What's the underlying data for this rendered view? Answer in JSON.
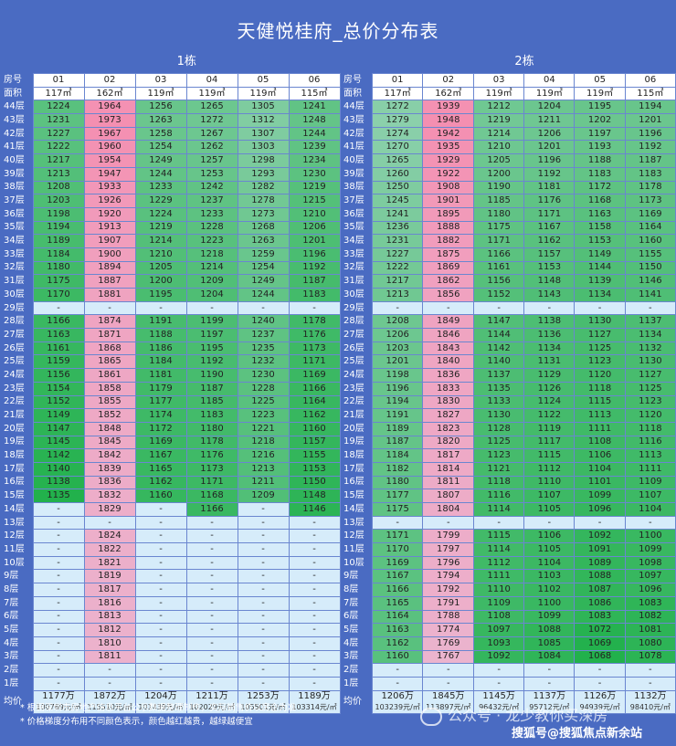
{
  "title": "天健悦桂府_总价分布表",
  "labels": {
    "room": "房号",
    "area": "面积",
    "avg": "均价"
  },
  "buildings": [
    {
      "name": "1栋",
      "units": [
        "01",
        "02",
        "03",
        "04",
        "05",
        "06"
      ],
      "areas": [
        "117㎡",
        "162㎡",
        "119㎡",
        "119㎡",
        "119㎡",
        "115㎡"
      ],
      "rows": [
        {
          "floor": "44层",
          "v": [
            "1224",
            "1964",
            "1256",
            "1265",
            "1305",
            "1241"
          ]
        },
        {
          "floor": "43层",
          "v": [
            "1231",
            "1973",
            "1263",
            "1272",
            "1312",
            "1248"
          ]
        },
        {
          "floor": "42层",
          "v": [
            "1227",
            "1967",
            "1258",
            "1267",
            "1307",
            "1244"
          ]
        },
        {
          "floor": "41层",
          "v": [
            "1222",
            "1960",
            "1254",
            "1262",
            "1303",
            "1239"
          ]
        },
        {
          "floor": "40层",
          "v": [
            "1217",
            "1954",
            "1249",
            "1257",
            "1298",
            "1234"
          ]
        },
        {
          "floor": "39层",
          "v": [
            "1213",
            "1947",
            "1244",
            "1253",
            "1293",
            "1230"
          ]
        },
        {
          "floor": "38层",
          "v": [
            "1208",
            "1933",
            "1233",
            "1242",
            "1282",
            "1219"
          ]
        },
        {
          "floor": "37层",
          "v": [
            "1203",
            "1926",
            "1229",
            "1237",
            "1278",
            "1215"
          ]
        },
        {
          "floor": "36层",
          "v": [
            "1198",
            "1920",
            "1224",
            "1233",
            "1273",
            "1210"
          ]
        },
        {
          "floor": "35层",
          "v": [
            "1194",
            "1913",
            "1219",
            "1228",
            "1268",
            "1206"
          ]
        },
        {
          "floor": "34层",
          "v": [
            "1189",
            "1907",
            "1214",
            "1223",
            "1263",
            "1201"
          ]
        },
        {
          "floor": "33层",
          "v": [
            "1184",
            "1900",
            "1210",
            "1218",
            "1259",
            "1196"
          ]
        },
        {
          "floor": "32层",
          "v": [
            "1180",
            "1894",
            "1205",
            "1214",
            "1254",
            "1192"
          ]
        },
        {
          "floor": "31层",
          "v": [
            "1175",
            "1887",
            "1200",
            "1209",
            "1249",
            "1187"
          ]
        },
        {
          "floor": "30层",
          "v": [
            "1170",
            "1881",
            "1195",
            "1204",
            "1244",
            "1183"
          ]
        },
        {
          "floor": "29层",
          "v": [
            "-",
            "-",
            "-",
            "-",
            "-",
            "-"
          ]
        },
        {
          "floor": "28层",
          "v": [
            "1166",
            "1874",
            "1191",
            "1199",
            "1240",
            "1178"
          ]
        },
        {
          "floor": "27层",
          "v": [
            "1163",
            "1871",
            "1188",
            "1197",
            "1237",
            "1176"
          ]
        },
        {
          "floor": "26层",
          "v": [
            "1161",
            "1868",
            "1186",
            "1195",
            "1235",
            "1173"
          ]
        },
        {
          "floor": "25层",
          "v": [
            "1159",
            "1865",
            "1184",
            "1192",
            "1232",
            "1171"
          ]
        },
        {
          "floor": "24层",
          "v": [
            "1156",
            "1861",
            "1181",
            "1190",
            "1230",
            "1169"
          ]
        },
        {
          "floor": "23层",
          "v": [
            "1154",
            "1858",
            "1179",
            "1187",
            "1228",
            "1166"
          ]
        },
        {
          "floor": "22层",
          "v": [
            "1152",
            "1855",
            "1177",
            "1185",
            "1225",
            "1164"
          ]
        },
        {
          "floor": "21层",
          "v": [
            "1149",
            "1852",
            "1174",
            "1183",
            "1223",
            "1162"
          ]
        },
        {
          "floor": "20层",
          "v": [
            "1147",
            "1848",
            "1172",
            "1180",
            "1221",
            "1160"
          ]
        },
        {
          "floor": "19层",
          "v": [
            "1145",
            "1845",
            "1169",
            "1178",
            "1218",
            "1157"
          ]
        },
        {
          "floor": "18层",
          "v": [
            "1142",
            "1842",
            "1167",
            "1176",
            "1216",
            "1155"
          ]
        },
        {
          "floor": "17层",
          "v": [
            "1140",
            "1839",
            "1165",
            "1173",
            "1213",
            "1153"
          ]
        },
        {
          "floor": "16层",
          "v": [
            "1138",
            "1836",
            "1162",
            "1171",
            "1211",
            "1150"
          ]
        },
        {
          "floor": "15层",
          "v": [
            "1135",
            "1832",
            "1160",
            "1168",
            "1209",
            "1148"
          ]
        },
        {
          "floor": "14层",
          "v": [
            "-",
            "1829",
            "-",
            "1166",
            "-",
            "1146"
          ]
        },
        {
          "floor": "13层",
          "v": [
            "-",
            "-",
            "-",
            "-",
            "-",
            "-"
          ]
        },
        {
          "floor": "12层",
          "v": [
            "-",
            "1824",
            "-",
            "-",
            "-",
            "-"
          ]
        },
        {
          "floor": "11层",
          "v": [
            "-",
            "1822",
            "-",
            "-",
            "-",
            "-"
          ]
        },
        {
          "floor": "10层",
          "v": [
            "-",
            "1821",
            "-",
            "-",
            "-",
            "-"
          ]
        },
        {
          "floor": "9层",
          "v": [
            "-",
            "1819",
            "-",
            "-",
            "-",
            "-"
          ]
        },
        {
          "floor": "8层",
          "v": [
            "-",
            "1817",
            "-",
            "-",
            "-",
            "-"
          ]
        },
        {
          "floor": "7层",
          "v": [
            "-",
            "1816",
            "-",
            "-",
            "-",
            "-"
          ]
        },
        {
          "floor": "6层",
          "v": [
            "-",
            "1813",
            "-",
            "-",
            "-",
            "-"
          ]
        },
        {
          "floor": "5层",
          "v": [
            "-",
            "1812",
            "-",
            "-",
            "-",
            "-"
          ]
        },
        {
          "floor": "4层",
          "v": [
            "-",
            "1810",
            "-",
            "-",
            "-",
            "-"
          ]
        },
        {
          "floor": "3层",
          "v": [
            "-",
            "1811",
            "-",
            "-",
            "-",
            "-"
          ]
        },
        {
          "floor": "2层",
          "v": [
            "-",
            "-",
            "-",
            "-",
            "-",
            "-"
          ]
        },
        {
          "floor": "1层",
          "v": [
            "-",
            "-",
            "-",
            "-",
            "-",
            "-"
          ]
        }
      ],
      "avg": [
        [
          "1177万",
          "100769元/㎡"
        ],
        [
          "1872万",
          "115510元/㎡"
        ],
        [
          "1204万",
          "101439元/㎡"
        ],
        [
          "1211万",
          "102029元/㎡"
        ],
        [
          "1253万",
          "105501元/㎡"
        ],
        [
          "1189万",
          "103314元/㎡"
        ]
      ]
    },
    {
      "name": "2栋",
      "units": [
        "01",
        "02",
        "03",
        "04",
        "05",
        "06"
      ],
      "areas": [
        "117㎡",
        "162㎡",
        "119㎡",
        "119㎡",
        "119㎡",
        "115㎡"
      ],
      "rows": [
        {
          "floor": "44层",
          "v": [
            "1272",
            "1939",
            "1212",
            "1204",
            "1195",
            "1194"
          ]
        },
        {
          "floor": "43层",
          "v": [
            "1279",
            "1948",
            "1219",
            "1211",
            "1202",
            "1201"
          ]
        },
        {
          "floor": "42层",
          "v": [
            "1274",
            "1942",
            "1214",
            "1206",
            "1197",
            "1196"
          ]
        },
        {
          "floor": "41层",
          "v": [
            "1270",
            "1935",
            "1210",
            "1201",
            "1193",
            "1192"
          ]
        },
        {
          "floor": "40层",
          "v": [
            "1265",
            "1929",
            "1205",
            "1196",
            "1188",
            "1187"
          ]
        },
        {
          "floor": "39层",
          "v": [
            "1260",
            "1922",
            "1200",
            "1192",
            "1183",
            "1183"
          ]
        },
        {
          "floor": "38层",
          "v": [
            "1250",
            "1908",
            "1190",
            "1181",
            "1172",
            "1178"
          ]
        },
        {
          "floor": "37层",
          "v": [
            "1245",
            "1901",
            "1185",
            "1176",
            "1168",
            "1173"
          ]
        },
        {
          "floor": "36层",
          "v": [
            "1241",
            "1895",
            "1180",
            "1171",
            "1163",
            "1169"
          ]
        },
        {
          "floor": "35层",
          "v": [
            "1236",
            "1888",
            "1175",
            "1167",
            "1158",
            "1164"
          ]
        },
        {
          "floor": "34层",
          "v": [
            "1231",
            "1882",
            "1171",
            "1162",
            "1153",
            "1160"
          ]
        },
        {
          "floor": "33层",
          "v": [
            "1227",
            "1875",
            "1166",
            "1157",
            "1149",
            "1155"
          ]
        },
        {
          "floor": "32层",
          "v": [
            "1222",
            "1869",
            "1161",
            "1153",
            "1144",
            "1150"
          ]
        },
        {
          "floor": "31层",
          "v": [
            "1217",
            "1862",
            "1156",
            "1148",
            "1139",
            "1146"
          ]
        },
        {
          "floor": "30层",
          "v": [
            "1213",
            "1856",
            "1152",
            "1143",
            "1134",
            "1141"
          ]
        },
        {
          "floor": "29层",
          "v": [
            "-",
            "-",
            "-",
            "-",
            "-",
            "-"
          ]
        },
        {
          "floor": "28层",
          "v": [
            "1208",
            "1849",
            "1147",
            "1138",
            "1130",
            "1137"
          ]
        },
        {
          "floor": "27层",
          "v": [
            "1206",
            "1846",
            "1144",
            "1136",
            "1127",
            "1134"
          ]
        },
        {
          "floor": "26层",
          "v": [
            "1203",
            "1843",
            "1142",
            "1134",
            "1125",
            "1132"
          ]
        },
        {
          "floor": "25层",
          "v": [
            "1201",
            "1840",
            "1140",
            "1131",
            "1123",
            "1130"
          ]
        },
        {
          "floor": "24层",
          "v": [
            "1198",
            "1836",
            "1137",
            "1129",
            "1120",
            "1127"
          ]
        },
        {
          "floor": "23层",
          "v": [
            "1196",
            "1833",
            "1135",
            "1126",
            "1118",
            "1125"
          ]
        },
        {
          "floor": "22层",
          "v": [
            "1194",
            "1830",
            "1133",
            "1124",
            "1115",
            "1123"
          ]
        },
        {
          "floor": "21层",
          "v": [
            "1191",
            "1827",
            "1130",
            "1122",
            "1113",
            "1120"
          ]
        },
        {
          "floor": "20层",
          "v": [
            "1189",
            "1823",
            "1128",
            "1119",
            "1111",
            "1118"
          ]
        },
        {
          "floor": "19层",
          "v": [
            "1187",
            "1820",
            "1125",
            "1117",
            "1108",
            "1116"
          ]
        },
        {
          "floor": "18层",
          "v": [
            "1184",
            "1817",
            "1123",
            "1115",
            "1106",
            "1113"
          ]
        },
        {
          "floor": "17层",
          "v": [
            "1182",
            "1814",
            "1121",
            "1112",
            "1104",
            "1111"
          ]
        },
        {
          "floor": "16层",
          "v": [
            "1180",
            "1811",
            "1118",
            "1110",
            "1101",
            "1109"
          ]
        },
        {
          "floor": "15层",
          "v": [
            "1177",
            "1807",
            "1116",
            "1107",
            "1099",
            "1107"
          ]
        },
        {
          "floor": "14层",
          "v": [
            "1175",
            "1804",
            "1114",
            "1105",
            "1096",
            "1104"
          ]
        },
        {
          "floor": "13层",
          "v": [
            "-",
            "-",
            "-",
            "-",
            "-",
            "-"
          ]
        },
        {
          "floor": "12层",
          "v": [
            "1171",
            "1799",
            "1115",
            "1106",
            "1092",
            "1100"
          ]
        },
        {
          "floor": "11层",
          "v": [
            "1170",
            "1797",
            "1114",
            "1105",
            "1091",
            "1099"
          ]
        },
        {
          "floor": "10层",
          "v": [
            "1169",
            "1796",
            "1112",
            "1104",
            "1089",
            "1098"
          ]
        },
        {
          "floor": "9层",
          "v": [
            "1167",
            "1794",
            "1111",
            "1103",
            "1088",
            "1097"
          ]
        },
        {
          "floor": "8层",
          "v": [
            "1166",
            "1792",
            "1110",
            "1102",
            "1087",
            "1096"
          ]
        },
        {
          "floor": "7层",
          "v": [
            "1165",
            "1791",
            "1109",
            "1100",
            "1086",
            "1083"
          ]
        },
        {
          "floor": "6层",
          "v": [
            "1164",
            "1788",
            "1108",
            "1099",
            "1083",
            "1082"
          ]
        },
        {
          "floor": "5层",
          "v": [
            "1163",
            "1774",
            "1097",
            "1088",
            "1072",
            "1081"
          ]
        },
        {
          "floor": "4层",
          "v": [
            "1162",
            "1769",
            "1093",
            "1085",
            "1069",
            "1080"
          ]
        },
        {
          "floor": "3层",
          "v": [
            "1160",
            "1767",
            "1092",
            "1084",
            "1068",
            "1078"
          ]
        },
        {
          "floor": "2层",
          "v": [
            "-",
            "-",
            "-",
            "-",
            "-",
            "-"
          ]
        },
        {
          "floor": "1层",
          "v": [
            "-",
            "-",
            "-",
            "-",
            "-",
            "-"
          ]
        }
      ],
      "avg": [
        [
          "1206万",
          "103239元/㎡"
        ],
        [
          "1845万",
          "113897元/㎡"
        ],
        [
          "1145万",
          "96432元/㎡"
        ],
        [
          "1137万",
          "95712元/㎡"
        ],
        [
          "1126万",
          "94939元/㎡"
        ],
        [
          "1132万",
          "98410元/㎡"
        ]
      ]
    }
  ],
  "notes": [
    "* 根据深圳市房地产信息平台公示数据整理制作，实际销售价以房企为准",
    "* 价格梯度分布用不同颜色表示，颜色越红越贵，越绿越便宜"
  ],
  "watermark": "公众号 · 龙少教你买深房",
  "source": "搜狐号@搜狐焦点新余站",
  "colors": {
    "background": "#4a6bc2",
    "high": "#f48fb1",
    "low": "#22b14c",
    "empty": "#d6ecfa",
    "mid": "#dfe8f7"
  }
}
